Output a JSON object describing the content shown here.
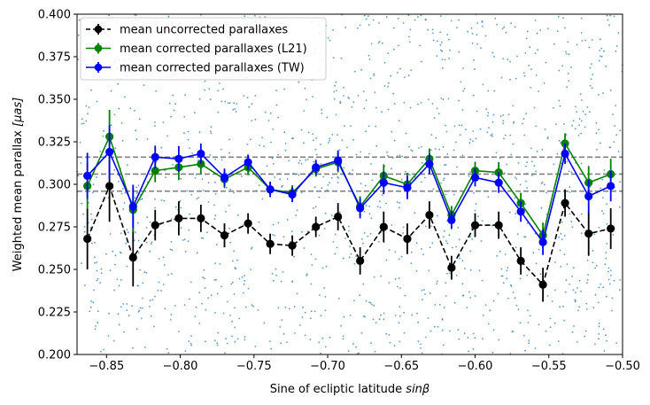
{
  "chart_data": {
    "type": "line",
    "xlabel_prefix": "Sine of ecliptic latitude ",
    "xlabel_math": "sinβ",
    "ylabel_prefix": "Weighted mean parallax ",
    "ylabel_math": "[μas]",
    "xlim": [
      -0.87,
      -0.5
    ],
    "ylim": [
      0.2,
      0.4
    ],
    "x_ticks": [
      -0.85,
      -0.8,
      -0.75,
      -0.7,
      -0.65,
      -0.6,
      -0.55,
      -0.5
    ],
    "x_tick_labels": [
      "−0.85",
      "−0.80",
      "−0.75",
      "−0.70",
      "−0.65",
      "−0.60",
      "−0.55",
      "−0.50"
    ],
    "y_ticks": [
      0.2,
      0.225,
      0.25,
      0.275,
      0.3,
      0.325,
      0.35,
      0.375,
      0.4
    ],
    "y_tick_labels": [
      "0.200",
      "0.225",
      "0.250",
      "0.275",
      "0.300",
      "0.325",
      "0.350",
      "0.375",
      "0.400"
    ],
    "hlines": [
      0.316,
      0.306,
      0.296
    ],
    "hline_color": "#808080",
    "scatter_color": "#1f77b4",
    "legend_position": "top-left",
    "x": [
      -0.863,
      -0.848,
      -0.832,
      -0.817,
      -0.801,
      -0.786,
      -0.77,
      -0.754,
      -0.739,
      -0.724,
      -0.708,
      -0.693,
      -0.678,
      -0.662,
      -0.646,
      -0.631,
      -0.616,
      -0.6,
      -0.584,
      -0.569,
      -0.554,
      -0.539,
      -0.523,
      -0.508
    ],
    "series": [
      {
        "name": "mean uncorrected parallaxes",
        "color": "#000000",
        "style": "dashed",
        "values": [
          0.268,
          0.299,
          0.257,
          0.276,
          0.28,
          0.28,
          0.27,
          0.277,
          0.265,
          0.264,
          0.275,
          0.281,
          0.255,
          0.275,
          0.268,
          0.282,
          0.251,
          0.276,
          0.276,
          0.255,
          0.241,
          0.289,
          0.271,
          0.274
        ],
        "errors": [
          0.018,
          0.021,
          0.017,
          0.009,
          0.01,
          0.008,
          0.007,
          0.006,
          0.006,
          0.006,
          0.006,
          0.008,
          0.008,
          0.009,
          0.009,
          0.008,
          0.007,
          0.007,
          0.008,
          0.008,
          0.01,
          0.008,
          0.013,
          0.012
        ]
      },
      {
        "name": "mean corrected parallaxes (L21)",
        "color": "#008000",
        "style": "solid",
        "values": [
          0.299,
          0.328,
          0.285,
          0.308,
          0.31,
          0.312,
          0.303,
          0.31,
          0.297,
          0.295,
          0.309,
          0.313,
          0.287,
          0.305,
          0.3,
          0.315,
          0.282,
          0.308,
          0.307,
          0.289,
          0.27,
          0.324,
          0.301,
          0.306
        ]
      },
      {
        "name": "mean corrected parallaxes (TW)",
        "color": "#0000ff",
        "style": "solid",
        "values": [
          0.305,
          0.319,
          0.287,
          0.316,
          0.315,
          0.318,
          0.304,
          0.313,
          0.297,
          0.294,
          0.31,
          0.314,
          0.286,
          0.301,
          0.298,
          0.312,
          0.279,
          0.304,
          0.301,
          0.284,
          0.266,
          0.318,
          0.293,
          0.299
        ]
      }
    ]
  }
}
